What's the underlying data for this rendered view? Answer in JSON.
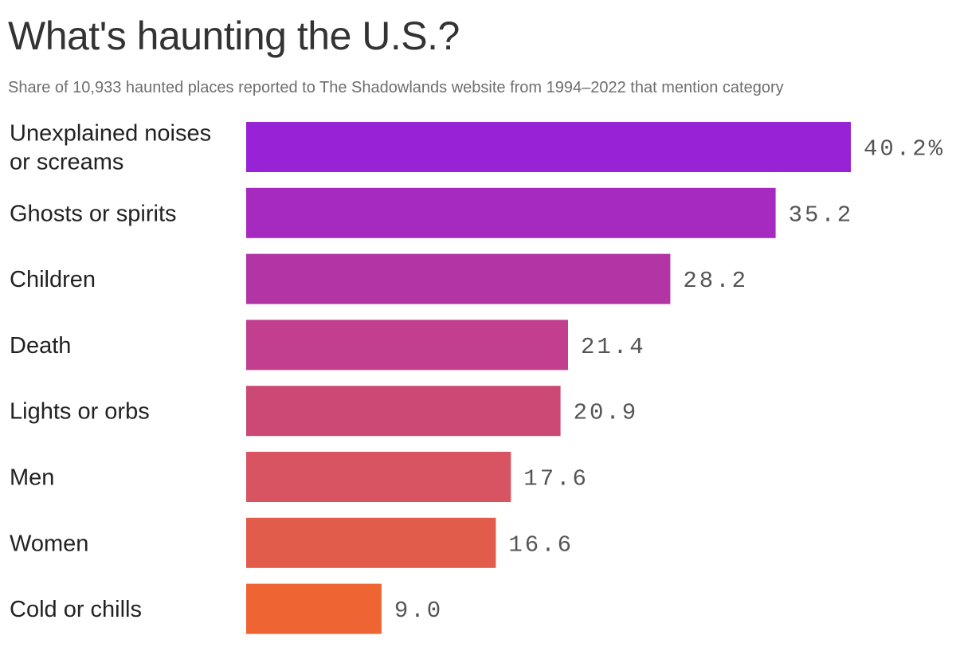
{
  "chart_data": {
    "type": "bar",
    "orientation": "horizontal",
    "title": "What's haunting the U.S.?",
    "subtitle": "Share of 10,933 haunted places reported to The Shadowlands website from 1994–2022 that mention category",
    "categories": [
      [
        "Unexplained noises",
        "or screams"
      ],
      [
        "Ghosts or spirits"
      ],
      [
        "Children"
      ],
      [
        "Death"
      ],
      [
        "Lights or orbs"
      ],
      [
        "Men"
      ],
      [
        "Women"
      ],
      [
        "Cold or chills"
      ]
    ],
    "values": [
      40.2,
      35.2,
      28.2,
      21.4,
      20.9,
      17.6,
      16.6,
      9.0
    ],
    "value_labels": [
      "40.2%",
      "35.2",
      "28.2",
      "21.4",
      "20.9",
      "17.6",
      "16.6",
      "9.0"
    ],
    "colors": [
      "#9722d6",
      "#a62ac0",
      "#b234a5",
      "#c13f8e",
      "#cc4976",
      "#d85462",
      "#e25c4b",
      "#ee6432"
    ],
    "xlim": [
      0,
      40.2
    ],
    "unit": "%",
    "grid": false,
    "legend": "none"
  }
}
